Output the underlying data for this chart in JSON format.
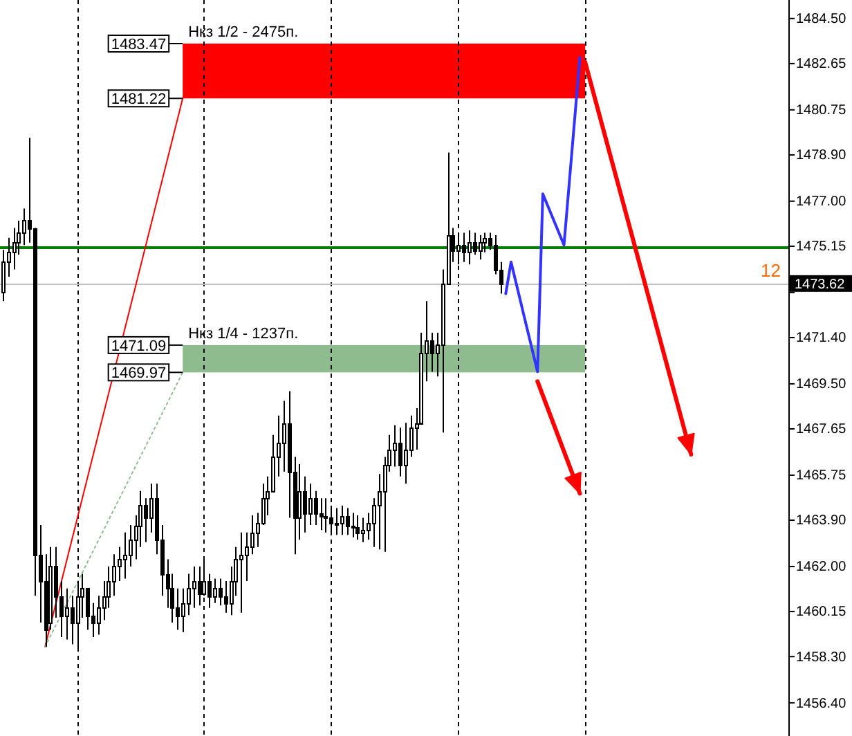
{
  "chart_data": {
    "type": "candlestick",
    "categories": [
      null,
      null,
      null,
      null,
      null,
      null,
      null,
      null,
      null,
      null,
      null,
      null,
      null,
      null,
      null,
      null,
      null,
      null,
      null,
      null,
      null,
      null,
      null,
      null,
      null,
      null,
      null,
      null,
      null,
      null,
      null,
      null,
      null,
      null,
      null,
      null,
      null,
      null,
      null,
      null,
      null,
      null,
      null,
      null,
      null,
      null,
      null,
      null,
      null,
      null,
      null,
      null,
      null,
      null,
      null,
      null,
      null,
      null,
      null,
      null,
      null,
      null,
      null,
      null,
      null,
      null,
      null,
      null,
      null,
      null,
      null,
      null,
      null,
      null,
      null,
      null,
      null,
      null,
      null,
      null,
      null,
      null,
      null,
      null,
      null,
      null,
      null,
      null,
      null,
      null,
      null,
      null,
      null,
      null,
      null,
      null,
      null,
      null,
      null,
      null,
      null,
      null,
      null,
      null,
      null,
      null,
      null,
      null,
      null,
      null,
      null,
      null,
      null,
      null,
      null,
      null,
      null,
      null,
      null,
      null,
      null,
      null,
      null,
      null,
      null,
      null,
      null,
      null,
      null,
      null,
      null,
      null,
      null,
      null,
      null,
      null,
      null,
      null,
      null,
      null,
      null,
      null,
      null,
      null,
      null,
      null,
      null,
      null,
      null
    ],
    "color": "#000000",
    "ohlc": [
      [
        1473.3,
        1475.0,
        1472.9,
        1474.5
      ],
      [
        1474.5,
        1475.5,
        1473.9,
        1474.9
      ],
      [
        1474.9,
        1475.9,
        1474.2,
        1475.3
      ],
      [
        1475.3,
        1476.2,
        1474.8,
        1475.7
      ],
      [
        1475.7,
        1476.7,
        1475.2,
        1476.2
      ],
      [
        1476.2,
        1479.6,
        1475.3,
        1475.9
      ],
      [
        1475.9,
        1475.9,
        1460.8,
        1462.5
      ],
      [
        1462.5,
        1463.7,
        1459.7,
        1461.4
      ],
      [
        1461.4,
        1462.5,
        1458.7,
        1459.4
      ],
      [
        1459.7,
        1462.8,
        1459.4,
        1462.0
      ],
      [
        1462.0,
        1462.8,
        1459.9,
        1460.8
      ],
      [
        1460.8,
        1461.4,
        1459.1,
        1460.0
      ],
      [
        1460.0,
        1461.1,
        1459.0,
        1460.3
      ],
      [
        1460.3,
        1460.8,
        1458.8,
        1459.7
      ],
      [
        1459.7,
        1461.4,
        1458.6,
        1460.8
      ],
      [
        1460.8,
        1461.7,
        1459.9,
        1461.1
      ],
      [
        1461.1,
        1461.1,
        1459.4,
        1460.0
      ],
      [
        1460.0,
        1460.5,
        1459.1,
        1459.7
      ],
      [
        1459.7,
        1460.8,
        1459.2,
        1460.3
      ],
      [
        1460.3,
        1461.4,
        1459.8,
        1460.8
      ],
      [
        1460.8,
        1462.0,
        1460.3,
        1461.4
      ],
      [
        1461.4,
        1462.5,
        1460.8,
        1462.0
      ],
      [
        1462.0,
        1462.8,
        1461.4,
        1462.3
      ],
      [
        1462.3,
        1463.4,
        1461.5,
        1462.5
      ],
      [
        1462.5,
        1463.7,
        1462.0,
        1463.1
      ],
      [
        1463.1,
        1464.1,
        1462.3,
        1463.7
      ],
      [
        1463.7,
        1465.1,
        1462.8,
        1464.5
      ],
      [
        1464.5,
        1464.8,
        1463.0,
        1464.0
      ],
      [
        1464.0,
        1465.4,
        1463.4,
        1464.8
      ],
      [
        1464.8,
        1465.4,
        1462.5,
        1463.1
      ],
      [
        1463.1,
        1463.7,
        1460.8,
        1461.7
      ],
      [
        1461.7,
        1462.3,
        1460.3,
        1461.1
      ],
      [
        1461.1,
        1461.7,
        1459.7,
        1460.3
      ],
      [
        1460.3,
        1461.1,
        1459.4,
        1460.0
      ],
      [
        1460.0,
        1461.1,
        1459.3,
        1460.5
      ],
      [
        1460.5,
        1461.7,
        1460.0,
        1461.1
      ],
      [
        1461.1,
        1462.0,
        1460.3,
        1461.4
      ],
      [
        1461.4,
        1462.0,
        1460.4,
        1460.9
      ],
      [
        1460.9,
        1462.3,
        1460.8,
        1461.4
      ],
      [
        1461.4,
        1461.7,
        1460.3,
        1460.8
      ],
      [
        1460.8,
        1461.5,
        1460.5,
        1461.1
      ],
      [
        1461.1,
        1461.5,
        1460.4,
        1460.8
      ],
      [
        1460.8,
        1461.4,
        1460.1,
        1460.5
      ],
      [
        1460.5,
        1462.0,
        1460.0,
        1461.4
      ],
      [
        1461.4,
        1462.8,
        1460.8,
        1462.3
      ],
      [
        1462.3,
        1463.4,
        1460.1,
        1462.5
      ],
      [
        1462.5,
        1463.4,
        1461.4,
        1462.8
      ],
      [
        1462.8,
        1464.1,
        1462.5,
        1463.4
      ],
      [
        1463.4,
        1464.2,
        1462.8,
        1463.8
      ],
      [
        1463.8,
        1465.4,
        1463.7,
        1464.8
      ],
      [
        1464.8,
        1465.7,
        1464.1,
        1465.1
      ],
      [
        1465.1,
        1467.4,
        1465.1,
        1466.5
      ],
      [
        1466.5,
        1468.2,
        1465.7,
        1467.1
      ],
      [
        1467.1,
        1468.8,
        1465.9,
        1467.9
      ],
      [
        1467.9,
        1469.2,
        1464.0,
        1465.9
      ],
      [
        1465.9,
        1466.5,
        1462.5,
        1464.0
      ],
      [
        1464.0,
        1466.2,
        1463.1,
        1465.1
      ],
      [
        1465.1,
        1465.7,
        1463.4,
        1464.2
      ],
      [
        1464.2,
        1465.4,
        1463.7,
        1464.8
      ],
      [
        1464.8,
        1465.1,
        1463.7,
        1464.2
      ],
      [
        1464.2,
        1464.8,
        1463.5,
        1464.1
      ],
      [
        1464.1,
        1464.8,
        1463.4,
        1464.0
      ],
      [
        1464.0,
        1464.5,
        1463.4,
        1463.8
      ],
      [
        1463.8,
        1464.4,
        1463.3,
        1463.8
      ],
      [
        1463.8,
        1464.5,
        1463.3,
        1464.1
      ],
      [
        1464.1,
        1464.4,
        1463.3,
        1463.7
      ],
      [
        1463.7,
        1464.2,
        1463.2,
        1463.6
      ],
      [
        1463.6,
        1464.1,
        1463.1,
        1463.4
      ],
      [
        1463.4,
        1464.0,
        1463.0,
        1463.5
      ],
      [
        1463.5,
        1464.2,
        1463.1,
        1463.8
      ],
      [
        1463.8,
        1464.8,
        1462.8,
        1464.5
      ],
      [
        1464.5,
        1465.8,
        1462.7,
        1465.1
      ],
      [
        1465.1,
        1466.5,
        1462.6,
        1466.2
      ],
      [
        1466.2,
        1467.4,
        1465.9,
        1466.8
      ],
      [
        1466.8,
        1467.8,
        1466.1,
        1467.1
      ],
      [
        1467.1,
        1467.7,
        1465.7,
        1466.2
      ],
      [
        1466.2,
        1467.9,
        1465.4,
        1466.8
      ],
      [
        1466.8,
        1468.2,
        1466.5,
        1467.7
      ],
      [
        1467.7,
        1468.5,
        1466.8,
        1467.9
      ],
      [
        1467.9,
        1471.6,
        1467.9,
        1470.8
      ],
      [
        1470.8,
        1472.9,
        1469.6,
        1471.3
      ],
      [
        1471.3,
        1471.6,
        1470.0,
        1470.8
      ],
      [
        1470.8,
        1471.6,
        1469.8,
        1471.1
      ],
      [
        1471.1,
        1474.2,
        1467.5,
        1473.6
      ],
      [
        1473.6,
        1479.0,
        1473.6,
        1475.6
      ],
      [
        1475.6,
        1475.9,
        1474.5,
        1475.0
      ],
      [
        1475.0,
        1475.6,
        1474.4,
        1475.2
      ],
      [
        1475.2,
        1475.7,
        1474.5,
        1474.9
      ],
      [
        1474.9,
        1475.8,
        1474.4,
        1475.3
      ],
      [
        1475.3,
        1475.7,
        1474.8,
        1475.0
      ],
      [
        1475.0,
        1475.6,
        1474.6,
        1475.3
      ],
      [
        1475.3,
        1475.7,
        1474.9,
        1475.5
      ],
      [
        1475.5,
        1475.7,
        1475.0,
        1475.2
      ],
      [
        1475.2,
        1475.6,
        1474.0,
        1474.2
      ],
      [
        1474.2,
        1474.5,
        1473.2,
        1473.6
      ],
      null,
      null,
      null,
      null,
      null,
      null,
      null,
      null,
      null,
      null,
      null,
      null,
      null,
      null,
      null,
      null,
      null,
      null,
      null,
      null,
      null,
      null,
      null,
      null,
      null,
      null,
      null,
      null,
      null,
      null,
      null,
      null,
      null,
      null,
      null,
      null,
      null,
      null,
      null,
      null,
      null,
      null,
      null,
      null,
      null,
      null,
      null,
      null,
      null,
      null,
      null,
      null,
      null,
      null
    ],
    "series": [
      {
        "type": "line",
        "color": "#ff0000",
        "values": [
          null,
          null,
          null,
          null,
          null,
          null,
          null,
          null,
          1458.7,
          null,
          null,
          null,
          null,
          null,
          null,
          null,
          null,
          null,
          null,
          null,
          null,
          null,
          null,
          null,
          null,
          null,
          null,
          null,
          null,
          null,
          null,
          null,
          null,
          null,
          1481.22,
          null,
          null,
          null,
          null,
          null,
          null,
          null,
          null,
          null,
          null,
          null,
          null,
          null,
          null,
          null,
          null,
          null,
          null,
          null,
          null,
          null,
          null,
          null,
          null,
          null,
          null,
          null,
          null,
          null,
          null,
          null,
          null,
          null,
          null,
          null,
          null,
          null,
          null,
          null,
          null,
          null,
          null,
          null,
          null,
          null,
          null,
          null,
          null,
          null,
          null,
          null,
          null,
          null,
          null,
          null,
          null,
          null,
          null,
          null,
          null,
          null,
          null,
          null,
          null,
          null,
          null,
          null,
          null,
          null,
          null,
          null,
          null,
          null,
          null,
          null,
          null,
          null,
          null,
          null,
          null,
          null,
          null,
          null,
          null,
          null,
          null,
          null,
          null,
          null,
          null,
          null,
          null,
          null,
          null,
          null,
          null,
          null,
          null,
          null,
          null,
          null,
          null,
          null,
          null,
          null,
          null,
          null,
          null,
          null,
          null,
          null,
          null,
          null,
          null
        ]
      },
      {
        "type": "line",
        "color": "#8fbc8f",
        "line_style": "dotted",
        "values": [
          null,
          null,
          null,
          null,
          null,
          null,
          null,
          null,
          1458.7,
          null,
          null,
          null,
          null,
          null,
          null,
          null,
          null,
          null,
          null,
          null,
          null,
          null,
          null,
          null,
          null,
          null,
          null,
          null,
          null,
          null,
          null,
          null,
          null,
          null,
          1469.97,
          null,
          null,
          null,
          null,
          null,
          null,
          null,
          null,
          null,
          null,
          null,
          null,
          null,
          null,
          null,
          null,
          null,
          null,
          null,
          null,
          null,
          null,
          null,
          null,
          null,
          null,
          null,
          null,
          null,
          null,
          null,
          null,
          null,
          null,
          null,
          null,
          null,
          null,
          null,
          null,
          null,
          null,
          null,
          null,
          null,
          null,
          null,
          null,
          null,
          null,
          null,
          null,
          null,
          null,
          null,
          null,
          null,
          null,
          null,
          null,
          null,
          null,
          null,
          null,
          null,
          null,
          null,
          null,
          null,
          null,
          null,
          null,
          null,
          null,
          null,
          null,
          null,
          null,
          null,
          null,
          null,
          null,
          null,
          null,
          null,
          null,
          null,
          null,
          null,
          null,
          null,
          null,
          null,
          null,
          null,
          null,
          null,
          null,
          null,
          null,
          null,
          null,
          null,
          null,
          null,
          null,
          null,
          null,
          null,
          null,
          null,
          null,
          null,
          null
        ]
      },
      {
        "type": "line",
        "color": "#3333ff",
        "values": [
          null,
          null,
          null,
          null,
          null,
          null,
          null,
          null,
          null,
          null,
          null,
          null,
          null,
          null,
          null,
          null,
          null,
          null,
          null,
          null,
          null,
          null,
          null,
          null,
          null,
          null,
          null,
          null,
          null,
          null,
          null,
          null,
          null,
          null,
          null,
          null,
          null,
          null,
          null,
          null,
          null,
          null,
          null,
          null,
          null,
          null,
          null,
          null,
          null,
          null,
          null,
          null,
          null,
          null,
          null,
          null,
          null,
          null,
          null,
          null,
          null,
          null,
          null,
          null,
          null,
          null,
          null,
          null,
          null,
          null,
          null,
          null,
          null,
          null,
          null,
          null,
          null,
          null,
          null,
          null,
          null,
          null,
          null,
          null,
          null,
          null,
          null,
          null,
          null,
          null,
          null,
          null,
          null,
          null,
          null,
          1473.2,
          1474.5,
          null,
          null,
          null,
          null,
          1470.0,
          1477.3,
          null,
          null,
          null,
          1475.2,
          null,
          null,
          1482.9,
          null,
          null,
          null,
          null,
          null,
          null,
          null,
          null,
          null,
          null,
          null,
          null,
          null,
          null,
          null,
          null,
          null,
          null,
          null,
          null,
          null,
          null,
          null,
          null,
          null,
          null,
          null,
          null,
          null,
          null,
          null,
          null,
          null,
          null,
          null,
          null,
          null,
          null,
          null
        ]
      },
      {
        "type": "line",
        "color": "#ff0000",
        "values": [
          null,
          null,
          null,
          null,
          null,
          null,
          null,
          null,
          null,
          null,
          null,
          null,
          null,
          null,
          null,
          null,
          null,
          null,
          null,
          null,
          null,
          null,
          null,
          null,
          null,
          null,
          null,
          null,
          null,
          null,
          null,
          null,
          null,
          null,
          null,
          null,
          null,
          null,
          null,
          null,
          null,
          null,
          null,
          null,
          null,
          null,
          null,
          null,
          null,
          null,
          null,
          null,
          null,
          null,
          null,
          null,
          null,
          null,
          null,
          null,
          null,
          null,
          null,
          null,
          null,
          null,
          null,
          null,
          null,
          null,
          null,
          null,
          null,
          null,
          null,
          null,
          null,
          null,
          null,
          null,
          null,
          null,
          null,
          null,
          null,
          null,
          null,
          null,
          null,
          null,
          null,
          null,
          null,
          null,
          null,
          null,
          null,
          null,
          null,
          null,
          null,
          1469.6,
          null,
          null,
          null,
          null,
          null,
          null,
          null,
          1465.0,
          null,
          null,
          null,
          null,
          null,
          null,
          null,
          null,
          null,
          null,
          null,
          null,
          null,
          null,
          null,
          null,
          null,
          null,
          null,
          null,
          null,
          null,
          null,
          null,
          null,
          null,
          null,
          null,
          null,
          null,
          null,
          null,
          null,
          null,
          null,
          null,
          null,
          null,
          null
        ]
      },
      {
        "type": "line",
        "color": "#ff0000",
        "values": [
          null,
          null,
          null,
          null,
          null,
          null,
          null,
          null,
          null,
          null,
          null,
          null,
          null,
          null,
          null,
          null,
          null,
          null,
          null,
          null,
          null,
          null,
          null,
          null,
          null,
          null,
          null,
          null,
          null,
          null,
          null,
          null,
          null,
          null,
          null,
          null,
          null,
          null,
          null,
          null,
          null,
          null,
          null,
          null,
          null,
          null,
          null,
          null,
          null,
          null,
          null,
          null,
          null,
          null,
          null,
          null,
          null,
          null,
          null,
          null,
          null,
          null,
          null,
          null,
          null,
          null,
          null,
          null,
          null,
          null,
          null,
          null,
          null,
          null,
          null,
          null,
          null,
          null,
          null,
          null,
          null,
          null,
          null,
          null,
          null,
          null,
          null,
          null,
          null,
          null,
          null,
          null,
          null,
          null,
          null,
          null,
          null,
          null,
          null,
          null,
          null,
          null,
          null,
          null,
          null,
          null,
          null,
          null,
          null,
          null,
          1482.7,
          null,
          null,
          null,
          null,
          null,
          null,
          null,
          null,
          null,
          null,
          null,
          null,
          null,
          null,
          null,
          null,
          null,
          null,
          null,
          1466.6,
          null,
          null,
          null,
          null,
          null,
          null,
          null,
          null,
          null,
          null,
          null,
          null,
          null,
          null,
          null,
          null,
          null,
          null
        ]
      }
    ],
    "ylim": [
      1455.04,
      1485.26
    ],
    "yticks": [
      {
        "value": 1484.5,
        "label": "1484.50"
      },
      1482.65,
      1480.75,
      {
        "value": 1478.9,
        "label": "1478.90"
      },
      {
        "value": 1477,
        "label": "1477.00"
      },
      1475.15,
      {
        "value": 1473.25,
        "label": null
      },
      {
        "value": 1471.4,
        "label": "1471.40"
      },
      {
        "value": 1469.5,
        "label": "1469.50"
      },
      1467.65,
      1465.75,
      {
        "value": 1463.9,
        "label": "1463.90"
      },
      {
        "value": 1462,
        "label": "1462.00"
      },
      1460.15,
      {
        "value": 1458.3,
        "label": "1458.30"
      },
      {
        "value": 1456.4,
        "label": "1456.40"
      }
    ],
    "tick_labels": "y",
    "ref_lines": [
      {
        "axis": "y",
        "value": 1475.1,
        "color": "#008000"
      },
      {
        "axis": "y",
        "value": 1473.62,
        "label": "1473.62",
        "color": "#c0c0c0"
      }
    ],
    "bands": [
      {
        "axis": "y",
        "from": 1481.22,
        "to": 1483.47,
        "label": "Нкз 1/2 - 2475п.",
        "color": "#ff0000"
      },
      {
        "axis": "y",
        "from": 1469.97,
        "to": 1471.09,
        "label": "Нкз 1/4 - 1237п.",
        "color": "#8fbc8f"
      }
    ],
    "annotations": [
      "1483.47",
      "1481.22",
      "1471.09",
      "1469.97",
      "12"
    ]
  }
}
